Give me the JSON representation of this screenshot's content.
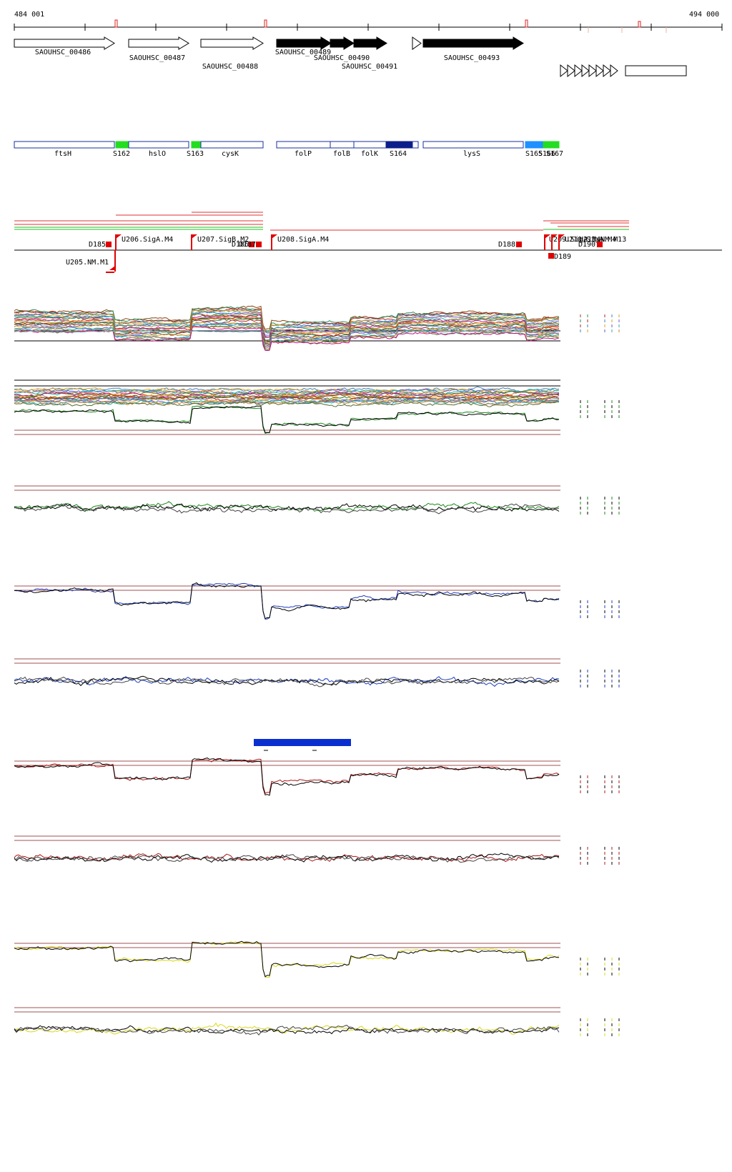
{
  "axis": {
    "start_label": "484 001",
    "end_label": "494 000"
  },
  "genes": [
    {
      "label": "SAOUHSC_00486",
      "filled": false
    },
    {
      "label": "SAOUHSC_00487",
      "filled": false
    },
    {
      "label": "SAOUHSC_00488",
      "filled": false
    },
    {
      "label": "SAOUHSC_00489",
      "filled": true
    },
    {
      "label": "SAOUHSC_00490",
      "filled": true
    },
    {
      "label": "SAOUHSC_00491",
      "filled": true
    },
    {
      "label": "",
      "filled": false
    },
    {
      "label": "SAOUHSC_00493",
      "filled": true
    },
    {
      "label": "",
      "filled": false
    }
  ],
  "annotations": [
    {
      "label": "ftsH",
      "type": "gene"
    },
    {
      "label": "S162",
      "type": "srna"
    },
    {
      "label": "hslO",
      "type": "gene"
    },
    {
      "label": "S163",
      "type": "srna"
    },
    {
      "label": "cysK",
      "type": "gene"
    },
    {
      "label": "folP",
      "type": "gene"
    },
    {
      "label": "folB",
      "type": "gene"
    },
    {
      "label": "folK",
      "type": "gene"
    },
    {
      "label": "S164",
      "type": "srna-dark"
    },
    {
      "label": "",
      "type": "gene"
    },
    {
      "label": "lysS",
      "type": "gene"
    },
    {
      "label": "S165",
      "type": "srna-blue"
    },
    {
      "label": "S166",
      "type": "srna"
    },
    {
      "label": "S167",
      "type": "srna"
    }
  ],
  "promoters": [
    {
      "label": "U205.NM.M1"
    },
    {
      "label": "U206.SigA.M4"
    },
    {
      "label": "U207.SigB.M2"
    },
    {
      "label": "U208.SigA.M4"
    },
    {
      "label": "U209.SigA.M4"
    },
    {
      "label": "U210.SigA.M4"
    },
    {
      "label": "U211.NM.M13"
    }
  ],
  "terminators": [
    {
      "label": "D185"
    },
    {
      "label": "D186"
    },
    {
      "label": "D187"
    },
    {
      "label": "D188"
    },
    {
      "label": "D189"
    },
    {
      "label": "D190"
    }
  ],
  "tracks": [
    {
      "kind": "multi"
    },
    {
      "kind": "multi-green",
      "color": "#1a8a1a"
    },
    {
      "kind": "pair",
      "color": "#1a8a1a"
    },
    {
      "kind": "pair",
      "color": "#1f3fbf"
    },
    {
      "kind": "pair",
      "color": "#1f3fbf"
    },
    {
      "kind": "pair",
      "color": "#b01818"
    },
    {
      "kind": "pair",
      "color": "#b01818"
    },
    {
      "kind": "pair",
      "color": "#d8d818"
    },
    {
      "kind": "pair",
      "color": "#d8d818"
    }
  ],
  "colors": {
    "srna": "#22dd22",
    "srna-dark": "#0a1f8a",
    "srna-blue": "#1e90ff",
    "gene_outline": "#1a2fa0",
    "promoter": "#e00000",
    "highlight_bar": "#0a2fd0"
  }
}
